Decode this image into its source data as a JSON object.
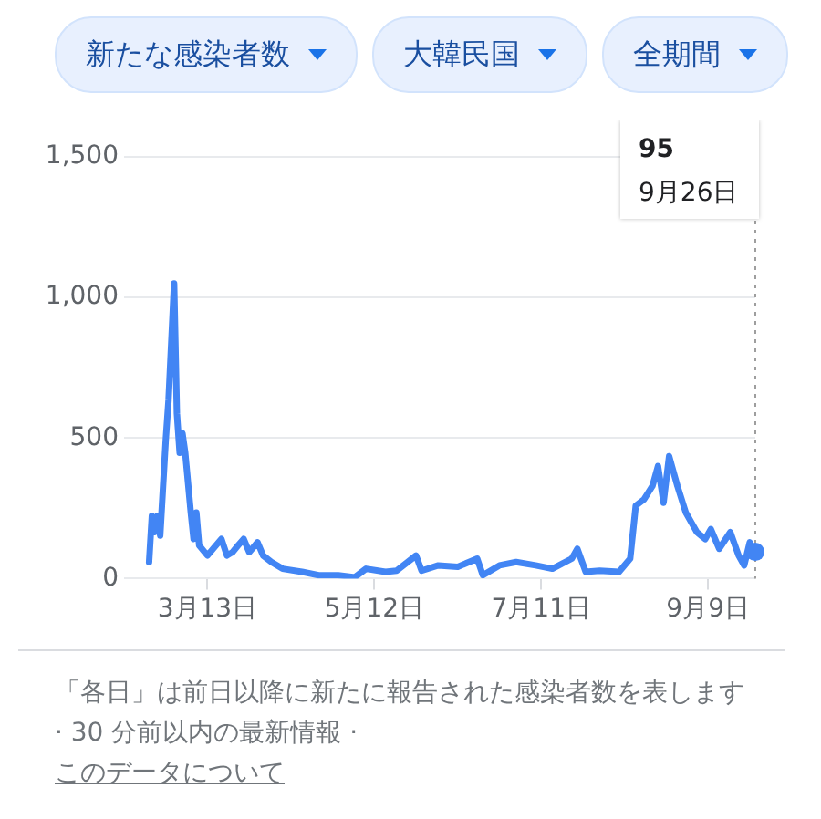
{
  "chart_data": {
    "type": "line",
    "title": "新たな感染者数",
    "subtitle": "大韓民国",
    "x": [
      "--02-21",
      "--02-22",
      "--02-23",
      "--02-24",
      "--02-25",
      "--02-27",
      "--02-28",
      "--03-01",
      "--03-02",
      "--03-03",
      "--03-04",
      "--03-05",
      "--03-07",
      "--03-08",
      "--03-09",
      "--03-10",
      "--03-13",
      "--03-18",
      "--03-20",
      "--03-22",
      "--03-24",
      "--03-26",
      "--03-28",
      "--03-31",
      "--04-02",
      "--04-05",
      "--04-09",
      "--04-16",
      "--04-22",
      "--04-29",
      "--05-05",
      "--05-09",
      "--05-16",
      "--05-20",
      "--05-27",
      "--05-29",
      "--06-04",
      "--06-11",
      "--06-18",
      "--06-20",
      "--06-26",
      "--07-02",
      "--07-09",
      "--07-15",
      "--07-22",
      "--07-24",
      "--07-27",
      "--08-01",
      "--08-08",
      "--08-12",
      "--08-14",
      "--08-17",
      "--08-20",
      "--08-22",
      "--08-24",
      "--08-26",
      "--08-29",
      "--09-01",
      "--09-05",
      "--09-08",
      "--09-10",
      "--09-13",
      "--09-17",
      "--09-20",
      "--09-22",
      "--09-24",
      "--09-25",
      "--09-26"
    ],
    "series": [
      {
        "color": "#4285f4",
        "values": [
          59,
          223,
          165,
          223,
          153,
          494,
          635,
          1050,
          588,
          447,
          517,
          447,
          235,
          141,
          235,
          118,
          82,
          141,
          82,
          94,
          118,
          141,
          94,
          129,
          82,
          59,
          35,
          24,
          12,
          12,
          5,
          35,
          24,
          28,
          82,
          28,
          47,
          42,
          71,
          12,
          47,
          59,
          47,
          35,
          71,
          106,
          24,
          28,
          24,
          71,
          259,
          282,
          329,
          400,
          270,
          435,
          329,
          235,
          165,
          141,
          176,
          106,
          165,
          82,
          47,
          129,
          106,
          95
        ]
      }
    ],
    "xlim": [
      "--02-12",
      "--09-26"
    ],
    "xticks": [
      {
        "value": "--03-13",
        "label": "3月13日"
      },
      {
        "value": "--05-12",
        "label": "5月12日"
      },
      {
        "value": "--07-11",
        "label": "7月11日"
      },
      {
        "value": "--09-09",
        "label": "9月9日"
      }
    ],
    "ylim": [
      0,
      1500
    ],
    "yticks": [
      {
        "value": 0,
        "label": "0"
      },
      {
        "value": 500,
        "label": "500"
      },
      {
        "value": 1000,
        "label": "1,000"
      },
      {
        "value": 1500,
        "label": "1,500"
      }
    ],
    "grid": "y",
    "legend": false,
    "marker": "none",
    "line_style": "solid",
    "ref_lines": [
      {
        "axis": "x",
        "value": "--09-26",
        "color": "#9e9e9e",
        "line_style": "dotted"
      }
    ],
    "annotations": [
      "全期間",
      "95",
      "9月26日",
      "「各日」は前日以降に新たに報告された感染者数を表します · 30 分前以内の最新情報 ·",
      "このデータについて"
    ]
  }
}
